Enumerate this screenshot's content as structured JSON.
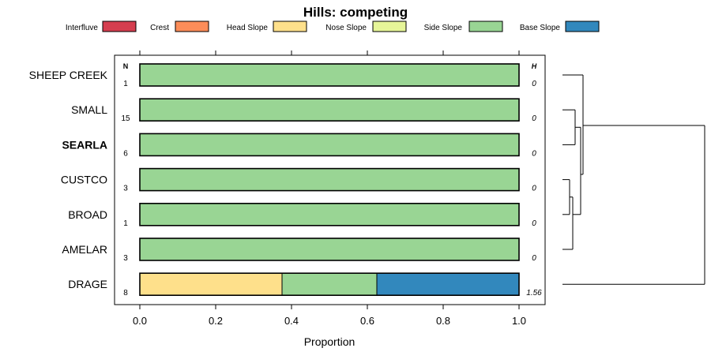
{
  "chart_data": {
    "type": "bar",
    "stacked": true,
    "orientation": "horizontal",
    "title": "Hills: competing",
    "xlabel": "Proportion",
    "xlim": [
      0,
      1
    ],
    "xticks": [
      "0.0",
      "0.2",
      "0.4",
      "0.6",
      "0.8",
      "1.0"
    ],
    "n_header": "N",
    "h_header": "H",
    "legend": [
      {
        "name": "Interfluve",
        "color": "#D53E4F"
      },
      {
        "name": "Crest",
        "color": "#FC8D59"
      },
      {
        "name": "Head Slope",
        "color": "#FEE08B"
      },
      {
        "name": "Nose Slope",
        "color": "#E6F598"
      },
      {
        "name": "Side Slope",
        "color": "#99D594"
      },
      {
        "name": "Base Slope",
        "color": "#3288BD"
      }
    ],
    "categories": [
      {
        "name": "SHEEP CREEK",
        "n": "1",
        "h": "0",
        "bold": false,
        "values": [
          0,
          0,
          0,
          0,
          1,
          0
        ]
      },
      {
        "name": "SMALL",
        "n": "15",
        "h": "0",
        "bold": false,
        "values": [
          0,
          0,
          0,
          0,
          1,
          0
        ]
      },
      {
        "name": "SEARLA",
        "n": "6",
        "h": "0",
        "bold": true,
        "values": [
          0,
          0,
          0,
          0,
          1,
          0
        ]
      },
      {
        "name": "CUSTCO",
        "n": "3",
        "h": "0",
        "bold": false,
        "values": [
          0,
          0,
          0,
          0,
          1,
          0
        ]
      },
      {
        "name": "BROAD",
        "n": "1",
        "h": "0",
        "bold": false,
        "values": [
          0,
          0,
          0,
          0,
          1,
          0
        ]
      },
      {
        "name": "AMELAR",
        "n": "3",
        "h": "0",
        "bold": false,
        "values": [
          0,
          0,
          0,
          0,
          1,
          0
        ]
      },
      {
        "name": "DRAGE",
        "n": "8",
        "h": "1.56",
        "bold": false,
        "values": [
          0,
          0,
          0.375,
          0,
          0.25,
          0.375
        ]
      }
    ]
  }
}
